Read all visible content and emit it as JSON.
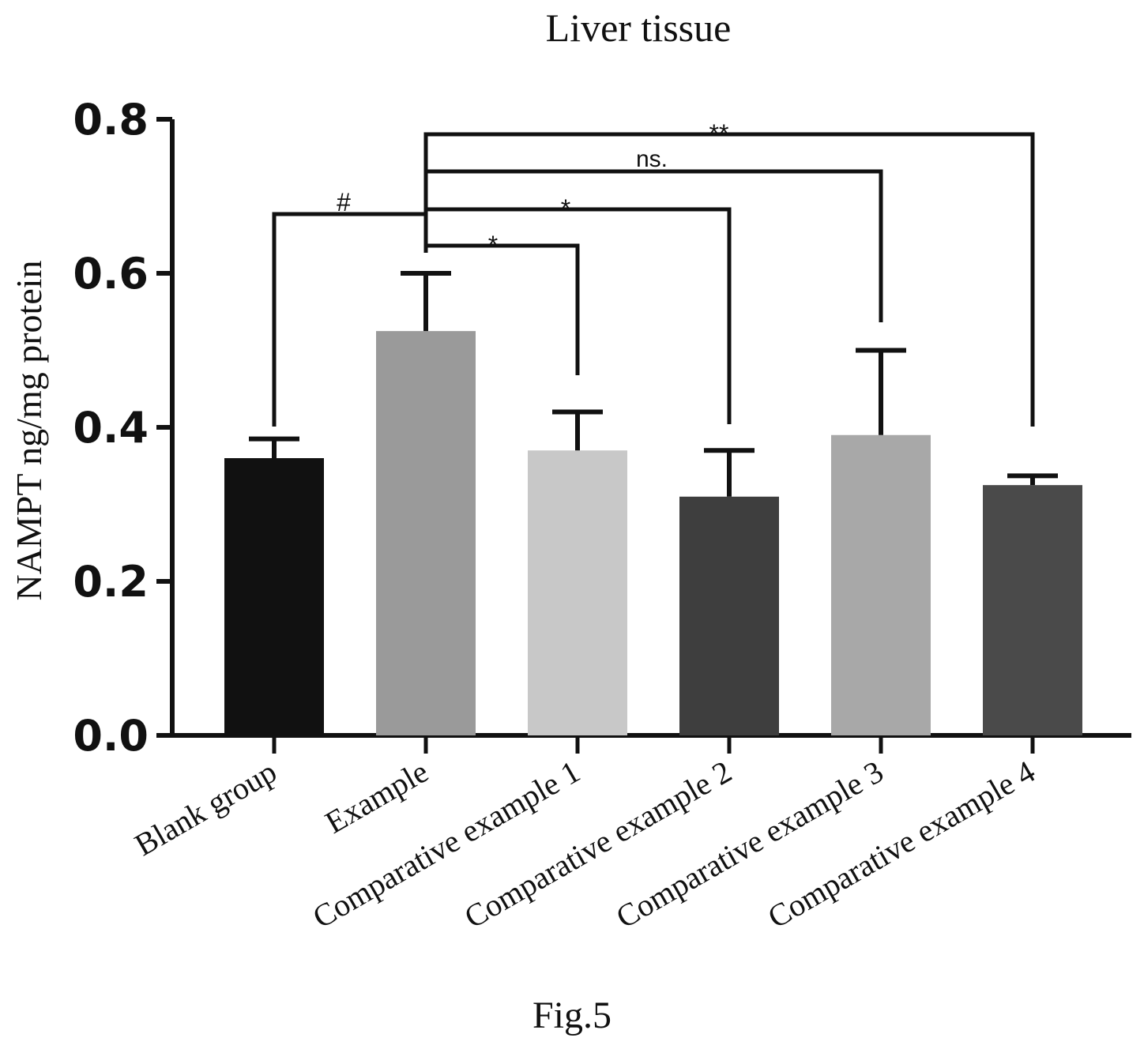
{
  "chart_data": {
    "type": "bar",
    "title": "Liver tissue",
    "xlabel": "",
    "ylabel": "NAMPT ng/mg protein",
    "ylim": [
      0,
      0.8
    ],
    "yticks": [
      0.0,
      0.2,
      0.4,
      0.6,
      0.8
    ],
    "ytick_labels": [
      "0.0",
      "0.2",
      "0.4",
      "0.6",
      "0.8"
    ],
    "categories": [
      "Blank group",
      "Example",
      "Comparative example 1",
      "Comparative example 2",
      "Comparative example 3",
      "Comparative example 4"
    ],
    "values": [
      0.36,
      0.525,
      0.37,
      0.31,
      0.39,
      0.325
    ],
    "error_upper": [
      0.385,
      0.6,
      0.42,
      0.37,
      0.5,
      0.337
    ],
    "bar_colors": [
      "#111111",
      "#9a9a9a",
      "#c8c8c8",
      "#3e3e3e",
      "#a8a8a8",
      "#4a4a4a"
    ],
    "grid": false,
    "legend": "none",
    "annotations": [
      {
        "label": "#",
        "from": "Blank group",
        "to": "Example"
      },
      {
        "label": "*",
        "from": "Example",
        "to": "Comparative example 1"
      },
      {
        "label": "*",
        "from": "Example",
        "to": "Comparative example 2"
      },
      {
        "label": "ns.",
        "from": "Example",
        "to": "Comparative example 3"
      },
      {
        "label": "**",
        "from": "Example",
        "to": "Comparative example 4"
      }
    ]
  },
  "caption": "Fig.5"
}
